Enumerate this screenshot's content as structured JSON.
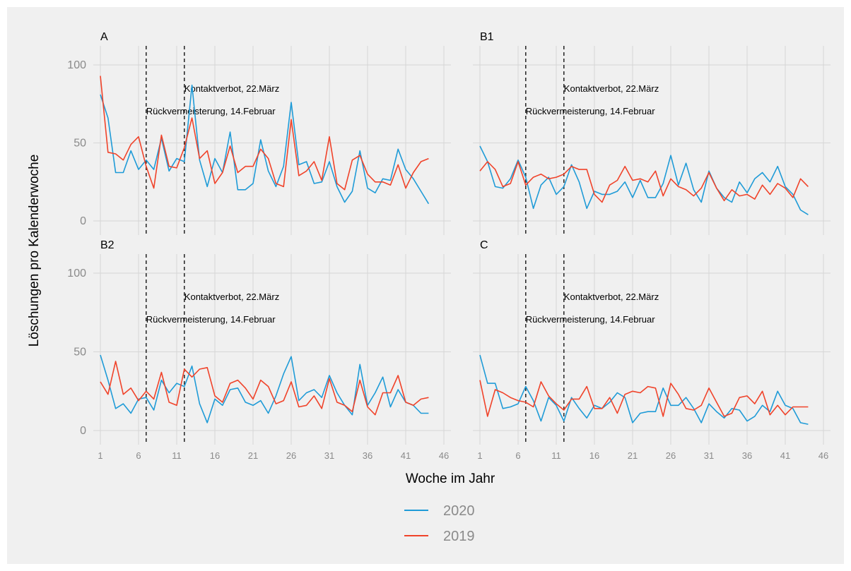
{
  "chart_data": {
    "type": "line",
    "xlabel": "Woche im Jahr",
    "ylabel": "Löschungen pro Kalenderwoche",
    "x_ticks": [
      "1",
      "6",
      "11",
      "16",
      "21",
      "26",
      "31",
      "36",
      "41",
      "46"
    ],
    "y_ticks": [
      "0",
      "50",
      "100"
    ],
    "xlim": [
      1,
      46
    ],
    "ylim": [
      0,
      100
    ],
    "grid": true,
    "legend_position": "bottom",
    "legend": [
      {
        "name": "2020",
        "color": "#1f9bd7"
      },
      {
        "name": "2019",
        "color": "#f0432a"
      }
    ],
    "annotations": [
      {
        "label": "Rückvermeisterung, 14.Februar",
        "x": 7
      },
      {
        "label": "Kontaktverbot, 22.März",
        "x": 12
      }
    ],
    "panels": [
      {
        "title": "A",
        "series": [
          {
            "name": "2020",
            "color": "#1f9bd7",
            "values": [
              81,
              66,
              31,
              31,
              45,
              33,
              39,
              33,
              53,
              32,
              40,
              38,
              87,
              39,
              22,
              40,
              31,
              57,
              20,
              20,
              24,
              52,
              32,
              22,
              35,
              76,
              36,
              38,
              24,
              25,
              38,
              22,
              12,
              19,
              45,
              21,
              18,
              27,
              26,
              46,
              33,
              27,
              19,
              11
            ]
          },
          {
            "name": "2019",
            "color": "#f0432a",
            "values": [
              93,
              44,
              43,
              39,
              49,
              54,
              35,
              21,
              55,
              35,
              34,
              47,
              66,
              40,
              45,
              24,
              31,
              48,
              31,
              35,
              35,
              46,
              40,
              24,
              22,
              65,
              29,
              32,
              38,
              26,
              54,
              24,
              20,
              39,
              42,
              30,
              25,
              25,
              23,
              36,
              21,
              31,
              38,
              40
            ]
          }
        ]
      },
      {
        "title": "B1",
        "series": [
          {
            "name": "2020",
            "color": "#1f9bd7",
            "values": [
              48,
              38,
              22,
              21,
              27,
              39,
              28,
              8,
              23,
              28,
              17,
              22,
              36,
              25,
              8,
              19,
              17,
              17,
              19,
              25,
              15,
              26,
              15,
              15,
              24,
              42,
              23,
              37,
              20,
              12,
              32,
              21,
              15,
              12,
              25,
              18,
              27,
              31,
              25,
              35,
              22,
              17,
              7,
              4
            ]
          },
          {
            "name": "2019",
            "color": "#f0432a",
            "values": [
              32,
              38,
              33,
              22,
              24,
              38,
              23,
              28,
              30,
              27,
              28,
              30,
              35,
              33,
              33,
              17,
              12,
              23,
              26,
              35,
              26,
              27,
              25,
              32,
              16,
              27,
              22,
              20,
              16,
              21,
              31,
              21,
              13,
              20,
              16,
              17,
              14,
              23,
              17,
              24,
              21,
              15,
              27,
              22
            ]
          }
        ]
      },
      {
        "title": "B2",
        "series": [
          {
            "name": "2020",
            "color": "#1f9bd7",
            "values": [
              48,
              32,
              14,
              17,
              11,
              20,
              21,
              13,
              32,
              24,
              30,
              28,
              41,
              17,
              5,
              20,
              16,
              26,
              27,
              18,
              16,
              19,
              11,
              22,
              36,
              47,
              19,
              24,
              26,
              21,
              35,
              24,
              16,
              10,
              42,
              16,
              24,
              34,
              15,
              26,
              18,
              16,
              11,
              11
            ]
          },
          {
            "name": "2019",
            "color": "#f0432a",
            "values": [
              31,
              23,
              44,
              23,
              27,
              19,
              25,
              20,
              37,
              18,
              16,
              39,
              34,
              39,
              40,
              22,
              18,
              30,
              32,
              27,
              20,
              32,
              28,
              17,
              19,
              31,
              15,
              16,
              22,
              14,
              33,
              18,
              16,
              12,
              32,
              15,
              10,
              24,
              24,
              35,
              18,
              16,
              20,
              21
            ]
          }
        ]
      },
      {
        "title": "C",
        "series": [
          {
            "name": "2020",
            "color": "#1f9bd7",
            "values": [
              48,
              30,
              30,
              14,
              15,
              17,
              28,
              19,
              6,
              21,
              16,
              6,
              21,
              14,
              8,
              16,
              14,
              18,
              24,
              21,
              5,
              11,
              12,
              12,
              27,
              16,
              16,
              21,
              14,
              5,
              17,
              12,
              8,
              14,
              13,
              6,
              9,
              16,
              12,
              25,
              16,
              14,
              5,
              4
            ]
          },
          {
            "name": "2019",
            "color": "#f0432a",
            "values": [
              32,
              9,
              26,
              24,
              21,
              19,
              18,
              15,
              31,
              22,
              17,
              13,
              20,
              20,
              28,
              14,
              14,
              21,
              11,
              23,
              25,
              24,
              28,
              27,
              9,
              30,
              23,
              14,
              13,
              16,
              27,
              18,
              9,
              11,
              21,
              22,
              17,
              25,
              10,
              16,
              10,
              15,
              15,
              15
            ]
          }
        ]
      }
    ]
  }
}
